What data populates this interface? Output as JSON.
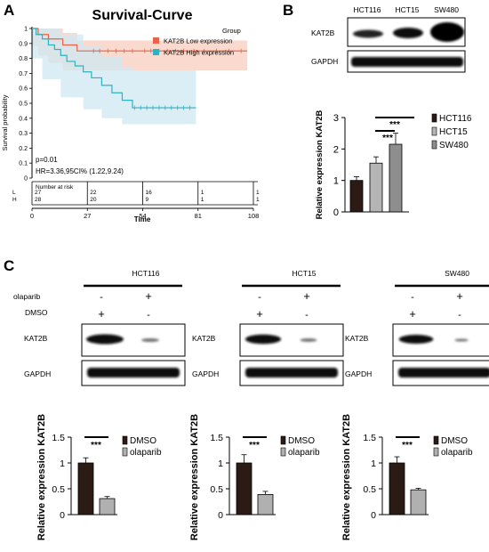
{
  "panels": {
    "A": {
      "letter": "A",
      "title": "Survival-Curve",
      "legend_title": "Group",
      "legend": [
        {
          "label": "KAT2B Low expression",
          "color": "#e8634a"
        },
        {
          "label": "KAT2B High expression",
          "color": "#2ab3c0"
        }
      ],
      "ylabel": "Survival probability",
      "xlabel": "Time",
      "p_text": "p=0.01",
      "hr_text": "HR=3.36,95CI% (1.22,9.24)",
      "risk_header": "Number at risk",
      "risk_rows": [
        {
          "label": "L",
          "values": [
            "27",
            "22",
            "16",
            "1",
            "1"
          ]
        },
        {
          "label": "H",
          "values": [
            "28",
            "20",
            "9",
            "1",
            "1"
          ]
        }
      ]
    },
    "B": {
      "letter": "B",
      "lane_labels": [
        "HCT116",
        "HCT15",
        "SW480"
      ],
      "blot_rows": [
        "KAT2B",
        "GAPDH"
      ],
      "ylabel": "Relative expression KAT2B",
      "sig": [
        "***",
        "***"
      ]
    },
    "C": {
      "letter": "C",
      "treatment_labels": [
        "olaparib",
        "DMSO"
      ],
      "signs": {
        "olaparib": [
          "-",
          "+"
        ],
        "dmso": [
          "+",
          "-"
        ]
      },
      "blot_rows": [
        "KAT2B",
        "GAPDH"
      ],
      "ylabel": "Relative expression KAT2B",
      "sig": "***",
      "cells": [
        "HCT116",
        "HCT15",
        "SW480"
      ]
    }
  },
  "chart_data": [
    {
      "type": "line",
      "panel": "A",
      "title": "Survival-Curve",
      "xlabel": "Time",
      "ylabel": "Survival probability",
      "xlim": [
        0,
        108
      ],
      "ylim": [
        0,
        1.0
      ],
      "xticks": [
        0,
        27,
        54,
        81,
        108
      ],
      "yticks": [
        0.0,
        0.1,
        0.2,
        0.3,
        0.4,
        0.5,
        0.6,
        0.7,
        0.8,
        0.9,
        1.0
      ],
      "legend_position": "top-right",
      "series": [
        {
          "name": "KAT2B Low expression",
          "color": "#e8634a",
          "band_color": "#f8cdbe",
          "x": [
            0,
            3,
            5,
            8,
            11,
            15,
            18,
            22,
            24,
            105
          ],
          "y": [
            1.0,
            0.96,
            0.96,
            0.93,
            0.93,
            0.89,
            0.89,
            0.85,
            0.85,
            0.85
          ],
          "ci_x": [
            0,
            3,
            8,
            15,
            22,
            105
          ],
          "ci_upper": [
            1.0,
            1.0,
            1.0,
            0.97,
            0.92,
            0.92
          ],
          "ci_lower": [
            1.0,
            0.88,
            0.82,
            0.77,
            0.72,
            0.72
          ],
          "censor_x": [
            30,
            33,
            37,
            41,
            45,
            49,
            55,
            58,
            62,
            66,
            70,
            74,
            79,
            84,
            90,
            96,
            102
          ]
        },
        {
          "name": "KAT2B High expression",
          "color": "#2ab3c0",
          "band_color": "#cfe8f3",
          "x": [
            0,
            2,
            5,
            8,
            11,
            14,
            17,
            21,
            25,
            29,
            34,
            39,
            44,
            49,
            80
          ],
          "y": [
            1.0,
            0.96,
            0.93,
            0.89,
            0.86,
            0.82,
            0.78,
            0.75,
            0.71,
            0.67,
            0.62,
            0.57,
            0.52,
            0.47,
            0.47
          ],
          "ci_x": [
            0,
            5,
            14,
            25,
            34,
            44,
            49,
            80
          ],
          "ci_upper": [
            1.0,
            1.0,
            0.96,
            0.88,
            0.81,
            0.74,
            0.72,
            0.72
          ],
          "ci_lower": [
            1.0,
            0.8,
            0.66,
            0.54,
            0.46,
            0.4,
            0.36,
            0.36
          ],
          "censor_x": [
            50,
            53,
            56,
            59,
            62,
            65,
            68,
            71,
            74,
            77
          ]
        }
      ]
    },
    {
      "type": "bar",
      "panel": "B",
      "categories": [
        "HCT116",
        "HCT15",
        "SW480"
      ],
      "values": [
        1.0,
        1.55,
        2.15
      ],
      "errors": [
        0.12,
        0.2,
        0.35
      ],
      "ylim": [
        0,
        3
      ],
      "yticks": [
        0,
        1,
        2,
        3
      ],
      "ylabel": "Relative expression KAT2B",
      "legend": [
        "HCT116",
        "HCT15",
        "SW480"
      ],
      "legend_position": "right",
      "significance": [
        "***",
        "***"
      ]
    },
    {
      "type": "bar",
      "panel": "C",
      "cell_line": "HCT116",
      "categories": [
        "DMSO",
        "olaparib"
      ],
      "values": [
        1.0,
        0.31
      ],
      "errors": [
        0.1,
        0.04
      ],
      "ylim": [
        0,
        1.5
      ],
      "yticks": [
        0,
        0.5,
        1.0,
        1.5
      ],
      "ylabel": "Relative expression KAT2B",
      "legend": [
        "DMSO",
        "olaparib"
      ],
      "significance": "***"
    },
    {
      "type": "bar",
      "panel": "C",
      "cell_line": "HCT15",
      "categories": [
        "DMSO",
        "olaparib"
      ],
      "values": [
        1.0,
        0.39
      ],
      "errors": [
        0.16,
        0.06
      ],
      "ylim": [
        0,
        1.5
      ],
      "yticks": [
        0,
        0.5,
        1.0,
        1.5
      ],
      "ylabel": "Relative expression KAT2B",
      "legend": [
        "DMSO",
        "olaparib"
      ],
      "significance": "***"
    },
    {
      "type": "bar",
      "panel": "C",
      "cell_line": "SW480",
      "categories": [
        "DMSO",
        "olaparib"
      ],
      "values": [
        1.0,
        0.48
      ],
      "errors": [
        0.12,
        0.03
      ],
      "ylim": [
        0,
        1.5
      ],
      "yticks": [
        0,
        0.5,
        1.0,
        1.5
      ],
      "ylabel": "Relative expression KAT2B",
      "legend": [
        "DMSO",
        "olaparib"
      ],
      "significance": "***"
    }
  ]
}
